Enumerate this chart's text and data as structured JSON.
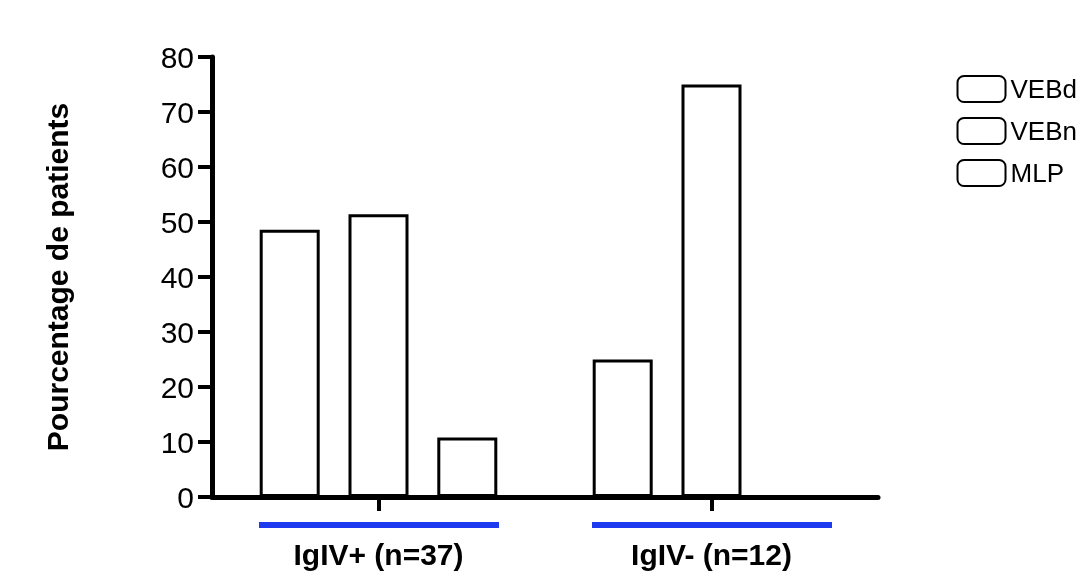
{
  "chart_data": {
    "type": "bar",
    "ylabel": "Pourcentage de patients",
    "categories": [
      "IgIV+ (n=37)",
      "IgIV- (n=12)"
    ],
    "series": [
      {
        "name": "VEBd",
        "color": "#ffffff",
        "values": [
          48.6,
          25
        ]
      },
      {
        "name": "VEBn",
        "color": "#ffffff",
        "values": [
          51.4,
          75
        ]
      },
      {
        "name": "MLP",
        "color": "#ffffff",
        "values": [
          10.8,
          null
        ]
      }
    ],
    "ylim": [
      0,
      80
    ],
    "yticks": [
      0,
      10,
      20,
      30,
      40,
      50,
      60,
      70,
      80
    ],
    "grid": false,
    "legend": "top right"
  }
}
